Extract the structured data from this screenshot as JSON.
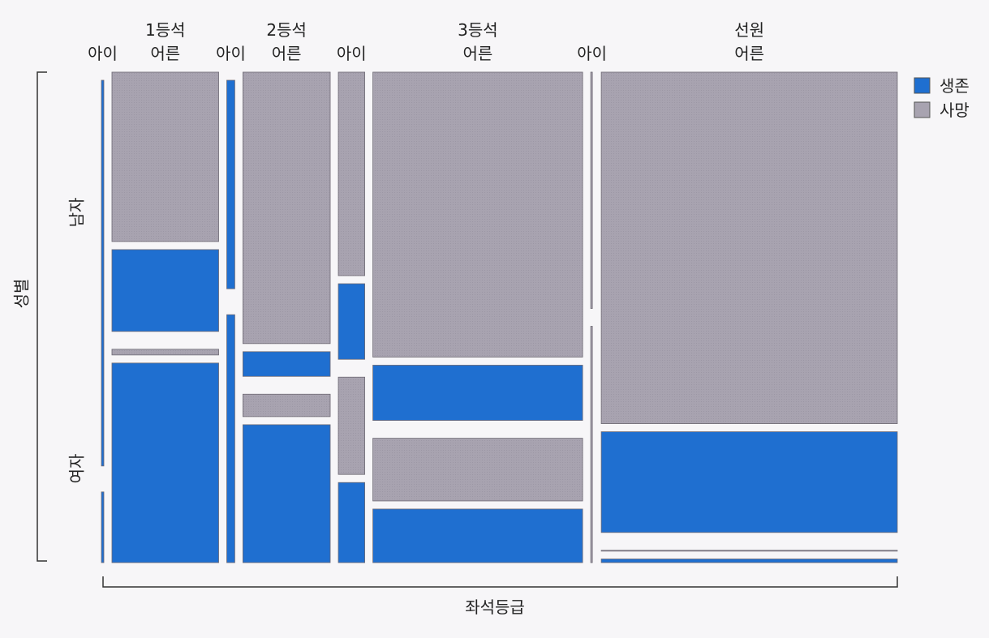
{
  "chart_data": {
    "type": "mosaic",
    "title": "",
    "x_axis_title": "좌석등급",
    "y_axis_title": "성별",
    "row_labels": [
      "남자",
      "여자"
    ],
    "column_labels": [
      [
        "아이"
      ],
      [
        "1등석",
        "어른"
      ],
      [
        "아이"
      ],
      [
        "2등석",
        "어른"
      ],
      [
        "아이"
      ],
      [
        "3등석",
        "어른"
      ],
      [
        "아이"
      ],
      [
        "선원",
        "어른"
      ]
    ],
    "legend": [
      {
        "label": "생존",
        "color": "#1f6fd0"
      },
      {
        "label": "사망",
        "color": "#a8a3b0"
      }
    ],
    "colors": {
      "survived": "#1f6fd0",
      "died": "#a8a3b0",
      "outline": "#6e6a74"
    },
    "groups": [
      {
        "class": "1등석",
        "age": "아이",
        "male": {
          "survived": 5,
          "died": 0
        },
        "female": {
          "survived": 1,
          "died": 0
        }
      },
      {
        "class": "1등석",
        "age": "어른",
        "male": {
          "survived": 57,
          "died": 118
        },
        "female": {
          "survived": 140,
          "died": 4
        }
      },
      {
        "class": "2등석",
        "age": "아이",
        "male": {
          "survived": 11,
          "died": 0
        },
        "female": {
          "survived": 13,
          "died": 0
        }
      },
      {
        "class": "2등석",
        "age": "어른",
        "male": {
          "survived": 14,
          "died": 154
        },
        "female": {
          "survived": 80,
          "died": 13
        }
      },
      {
        "class": "3등석",
        "age": "아이",
        "male": {
          "survived": 13,
          "died": 35
        },
        "female": {
          "survived": 14,
          "died": 17
        }
      },
      {
        "class": "3등석",
        "age": "어른",
        "male": {
          "survived": 75,
          "died": 387
        },
        "female": {
          "survived": 76,
          "died": 89
        }
      },
      {
        "class": "선원",
        "age": "아이",
        "male": {
          "survived": 0,
          "died": 0
        },
        "female": {
          "survived": 0,
          "died": 0
        }
      },
      {
        "class": "선원",
        "age": "어른",
        "male": {
          "survived": 192,
          "died": 670
        },
        "female": {
          "survived": 20,
          "died": 3
        }
      }
    ]
  }
}
